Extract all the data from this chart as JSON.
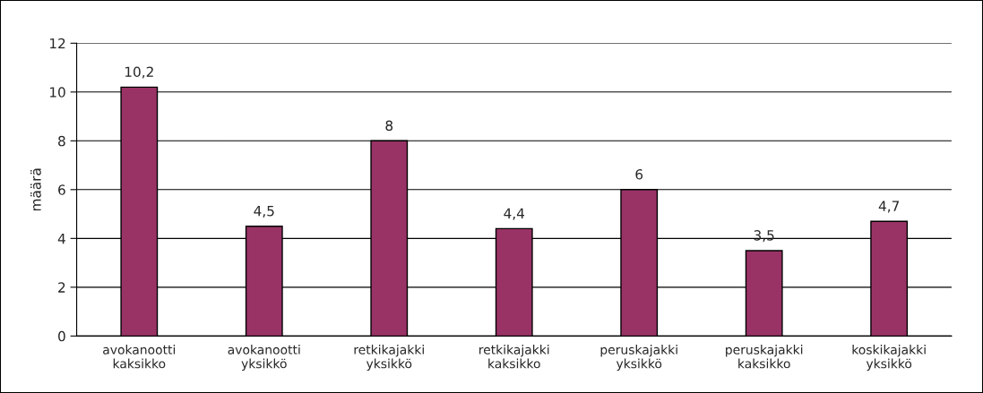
{
  "chart_data": {
    "type": "bar",
    "ylabel": "määrä",
    "categories": [
      "avokanootti\nkaksikko",
      "avokanootti\nyksikkö",
      "retkikajakki\nyksikkö",
      "retkikajakki\nkaksikko",
      "peruskajakki\nyksikkö",
      "peruskajakki\nkaksikko",
      "koskikajakki\nyksikkö"
    ],
    "values": [
      10.2,
      4.5,
      8,
      4.4,
      6,
      3.5,
      4.7
    ],
    "value_labels": [
      "10,2",
      "4,5",
      "8",
      "4,4",
      "6",
      "3,5",
      "4,7"
    ],
    "color": "#993366",
    "ylim": [
      0,
      12
    ],
    "yticks": [
      0,
      2,
      4,
      6,
      8,
      10,
      12
    ],
    "grid": "y"
  }
}
